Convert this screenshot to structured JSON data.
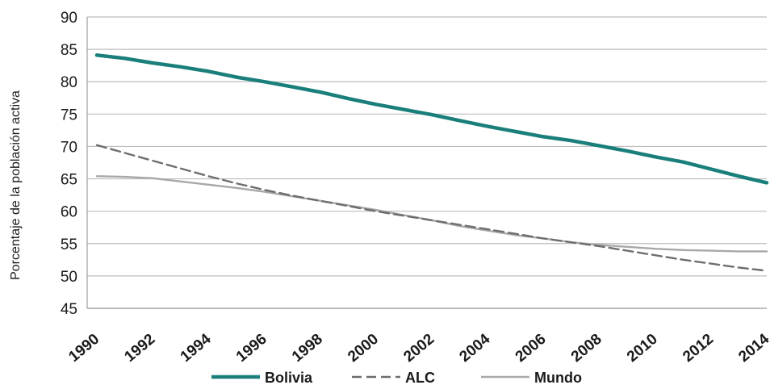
{
  "chart_data": {
    "type": "line",
    "title": "",
    "xlabel": "",
    "ylabel": "Porcentaje de la población activa",
    "ylim": [
      45,
      90
    ],
    "yticks": [
      "45",
      "50",
      "55",
      "60",
      "65",
      "70",
      "75",
      "80",
      "85",
      "90"
    ],
    "x": [
      "1990",
      "1991",
      "1992",
      "1993",
      "1994",
      "1995",
      "1996",
      "1997",
      "1998",
      "1999",
      "2000",
      "2001",
      "2002",
      "2003",
      "2004",
      "2005",
      "2006",
      "2007",
      "2008",
      "2009",
      "2010",
      "2011",
      "2012",
      "2013",
      "2014"
    ],
    "xticks": [
      "1990",
      "1992",
      "1994",
      "1996",
      "1998",
      "2000",
      "2002",
      "2004",
      "2006",
      "2008",
      "2010",
      "2012",
      "2014"
    ],
    "grid": "horizontal",
    "legend_position": "bottom",
    "series": [
      {
        "name": "Bolivia",
        "style": "solid",
        "color": "#1a7f7a",
        "values": [
          84.1,
          83.6,
          82.9,
          82.3,
          81.6,
          80.7,
          80.0,
          79.2,
          78.4,
          77.4,
          76.5,
          75.7,
          74.9,
          74.0,
          73.1,
          72.3,
          71.5,
          70.9,
          70.1,
          69.3,
          68.4,
          67.6,
          66.5,
          65.4,
          64.4
        ]
      },
      {
        "name": "ALC",
        "style": "dashed",
        "color": "#6e6e6e",
        "values": [
          70.2,
          69.0,
          67.8,
          66.6,
          65.4,
          64.3,
          63.3,
          62.4,
          61.6,
          60.8,
          60.0,
          59.3,
          58.6,
          57.9,
          57.2,
          56.5,
          55.8,
          55.2,
          54.6,
          53.9,
          53.2,
          52.5,
          51.9,
          51.3,
          50.8
        ]
      },
      {
        "name": "Mundo",
        "style": "solid",
        "color": "#a8a8a8",
        "values": [
          65.4,
          65.3,
          65.1,
          64.6,
          64.1,
          63.6,
          63.0,
          62.3,
          61.6,
          60.9,
          60.2,
          59.4,
          58.6,
          57.7,
          57.0,
          56.3,
          55.8,
          55.2,
          54.8,
          54.5,
          54.2,
          54.0,
          53.9,
          53.8,
          53.8
        ]
      }
    ]
  }
}
